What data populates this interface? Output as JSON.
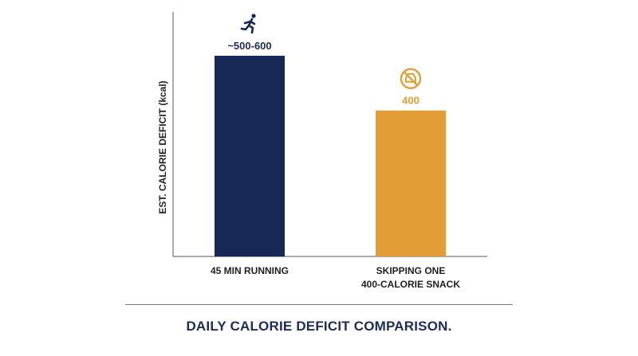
{
  "chart_data": {
    "type": "bar",
    "title": "DAILY CALORIE DEFICIT COMPARISON.",
    "ylabel": "EST. CALORIE DEFICIT (kcal)",
    "xlabel": "",
    "ylim": [
      0,
      670
    ],
    "grid": false,
    "categories": [
      [
        "45 MIN RUNNING"
      ],
      [
        "SKIPPING ONE",
        "400-CALORIE SNACK"
      ]
    ],
    "values": [
      550,
      400
    ],
    "value_labels": [
      "~500-600",
      "400"
    ],
    "icons": [
      "running-person-icon",
      "no-food-icon"
    ],
    "colors": [
      "#172856",
      "#e39d36"
    ]
  }
}
